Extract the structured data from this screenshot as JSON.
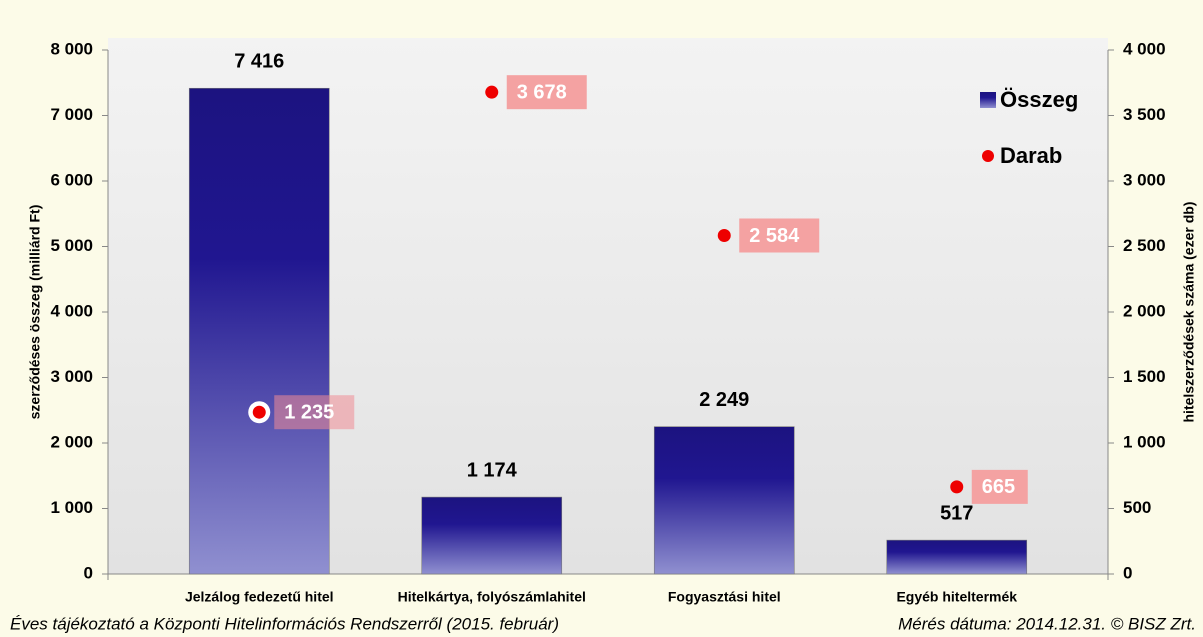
{
  "chart_data": {
    "type": "bar",
    "y_label": "szerződéses összeg (milliárd Ft)",
    "y2_label": "hitelszerződések száma (ezer db)",
    "categories": [
      "Jelzálog fedezetű hitel",
      "Hitelkártya, folyószámlahitel",
      "Fogyasztási hitel",
      "Egyéb hiteltermék"
    ],
    "series": [
      {
        "name": "Összeg",
        "type": "bar",
        "axis": "y",
        "color": "#1c1380",
        "values": [
          7416,
          1174,
          2249,
          517
        ],
        "value_labels": [
          "7 416",
          "1 174",
          "2 249",
          "517"
        ]
      },
      {
        "name": "Darab",
        "type": "scatter",
        "axis": "y2",
        "color": "#ee0000",
        "values": [
          1235,
          3678,
          2584,
          665
        ],
        "value_labels": [
          "1 235",
          "3 678",
          "2 584",
          "665"
        ]
      }
    ],
    "ylim": [
      0,
      8000
    ],
    "yticks": [
      0,
      {
        "value": 1000,
        "label": "1 000"
      },
      {
        "value": 2000,
        "label": "2 000"
      },
      {
        "value": 3000,
        "label": "3 000"
      },
      {
        "value": 4000,
        "label": "4 000"
      },
      {
        "value": 5000,
        "label": "5 000"
      },
      {
        "value": 6000,
        "label": "6 000"
      },
      {
        "value": 7000,
        "label": "7 000"
      },
      {
        "value": 8000,
        "label": "8 000"
      }
    ],
    "y2lim": [
      0,
      4000
    ],
    "y2ticks": [
      0,
      500,
      {
        "value": 1000,
        "label": "1 000"
      },
      {
        "value": 1500,
        "label": "1 500"
      },
      {
        "value": 2000,
        "label": "2 000"
      },
      {
        "value": 2500,
        "label": "2 500"
      },
      {
        "value": 3000,
        "label": "3 000"
      },
      {
        "value": 3500,
        "label": "3 500"
      },
      {
        "value": 4000,
        "label": "4 000"
      }
    ],
    "legend": "top-right",
    "footer_left": "Éves tájékoztató a Központi Hitelinformációs Rendszerről (2015. február)",
    "footer_right": "Mérés dátuma:  2014.12.31. © BISZ Zrt."
  }
}
